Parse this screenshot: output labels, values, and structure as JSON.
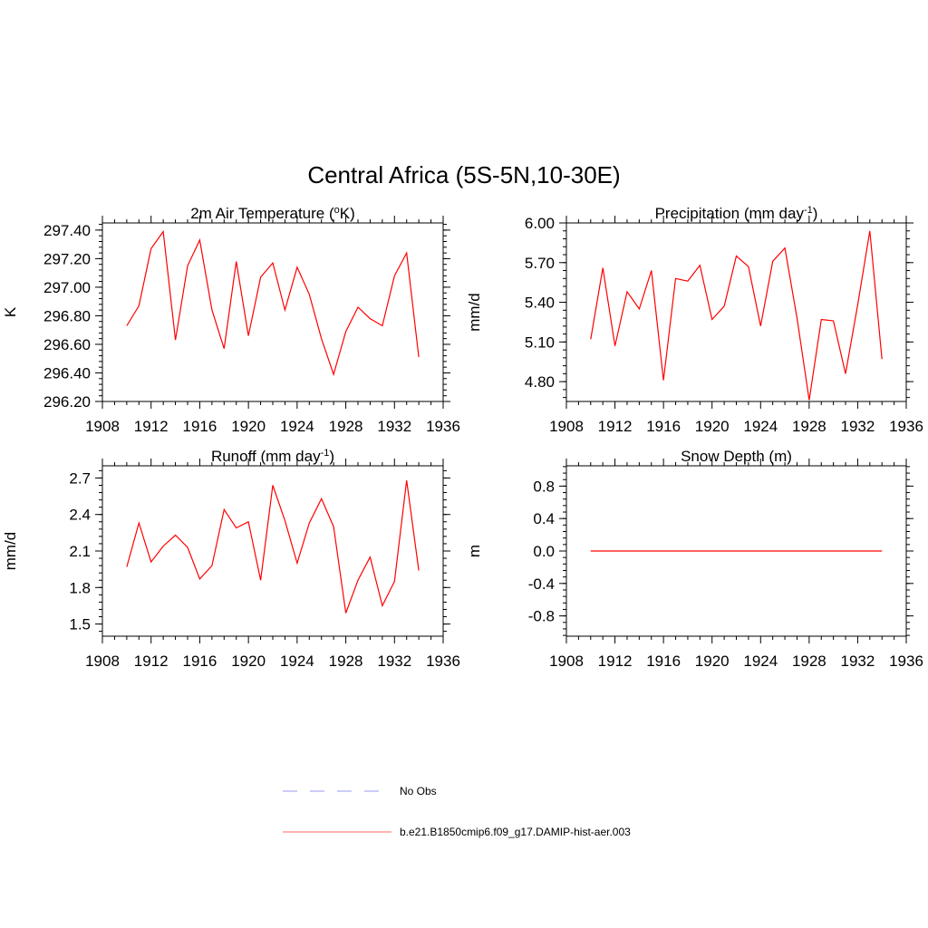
{
  "figure": {
    "title": "Central Africa (5S-5N,10-30E)"
  },
  "chart_data": [
    {
      "type": "line",
      "title": "2m Air Temperature (",
      "title_sup": "o",
      "title_tail": "K)",
      "ylabel": "K",
      "xlim": [
        1908,
        1936
      ],
      "ylim": [
        296.2,
        297.45
      ],
      "yticks": [
        "296.20",
        "296.40",
        "296.60",
        "296.80",
        "297.00",
        "297.20",
        "297.40"
      ],
      "xticks": [
        "1908",
        "1912",
        "1916",
        "1920",
        "1924",
        "1928",
        "1932",
        "1936"
      ],
      "series": [
        {
          "color": "#ff0000",
          "x": [
            1910,
            1911,
            1912,
            1913,
            1914,
            1915,
            1916,
            1917,
            1918,
            1919,
            1920,
            1921,
            1922,
            1923,
            1924,
            1925,
            1926,
            1927,
            1928,
            1929,
            1930,
            1931,
            1932,
            1933,
            1934
          ],
          "y": [
            296.73,
            296.87,
            297.27,
            297.39,
            296.63,
            297.15,
            297.33,
            296.84,
            296.57,
            297.18,
            296.66,
            297.07,
            297.17,
            296.84,
            297.14,
            296.95,
            296.64,
            296.39,
            296.69,
            296.86,
            296.78,
            296.73,
            297.08,
            297.24,
            296.51
          ]
        }
      ]
    },
    {
      "type": "line",
      "title": "Precipitation (mm day",
      "title_sup": "-1",
      "title_tail": ")",
      "ylabel": "mm/d",
      "xlim": [
        1908,
        1936
      ],
      "ylim": [
        4.65,
        6.0
      ],
      "yticks": [
        "4.80",
        "5.10",
        "5.40",
        "5.70",
        "6.00"
      ],
      "xticks": [
        "1908",
        "1912",
        "1916",
        "1920",
        "1924",
        "1928",
        "1932",
        "1936"
      ],
      "series": [
        {
          "color": "#ff0000",
          "x": [
            1910,
            1911,
            1912,
            1913,
            1914,
            1915,
            1916,
            1917,
            1918,
            1919,
            1920,
            1921,
            1922,
            1923,
            1924,
            1925,
            1926,
            1927,
            1928,
            1929,
            1930,
            1931,
            1932,
            1933,
            1934
          ],
          "y": [
            5.12,
            5.66,
            5.07,
            5.48,
            5.35,
            5.64,
            4.81,
            5.58,
            5.56,
            5.68,
            5.27,
            5.37,
            5.75,
            5.67,
            5.22,
            5.71,
            5.81,
            5.28,
            4.66,
            5.27,
            5.26,
            4.86,
            5.38,
            5.94,
            4.97
          ]
        }
      ]
    },
    {
      "type": "line",
      "title": "Runoff (mm day",
      "title_sup": "-1",
      "title_tail": ")",
      "ylabel": "mm/d",
      "xlim": [
        1908,
        1936
      ],
      "ylim": [
        1.4,
        2.8
      ],
      "yticks": [
        "1.5",
        "1.8",
        "2.1",
        "2.4",
        "2.7"
      ],
      "xticks": [
        "1908",
        "1912",
        "1916",
        "1920",
        "1924",
        "1928",
        "1932",
        "1936"
      ],
      "series": [
        {
          "color": "#ff0000",
          "x": [
            1910,
            1911,
            1912,
            1913,
            1914,
            1915,
            1916,
            1917,
            1918,
            1919,
            1920,
            1921,
            1922,
            1923,
            1924,
            1925,
            1926,
            1927,
            1928,
            1929,
            1930,
            1931,
            1932,
            1933,
            1934
          ],
          "y": [
            1.97,
            2.33,
            2.01,
            2.14,
            2.23,
            2.13,
            1.87,
            1.98,
            2.44,
            2.29,
            2.34,
            1.86,
            2.64,
            2.35,
            2.0,
            2.33,
            2.53,
            2.3,
            1.59,
            1.86,
            2.05,
            1.65,
            1.85,
            2.68,
            1.94
          ]
        }
      ]
    },
    {
      "type": "line",
      "title": "Snow Depth (m)",
      "title_sup": "",
      "title_tail": "",
      "ylabel": "m",
      "xlim": [
        1908,
        1936
      ],
      "ylim": [
        -1.05,
        1.05
      ],
      "yticks": [
        "-0.8",
        "-0.4",
        "0.0",
        "0.4",
        "0.8"
      ],
      "xticks": [
        "1908",
        "1912",
        "1916",
        "1920",
        "1924",
        "1928",
        "1932",
        "1936"
      ],
      "series": [
        {
          "color": "#ff0000",
          "x": [
            1910,
            1911,
            1912,
            1913,
            1914,
            1915,
            1916,
            1917,
            1918,
            1919,
            1920,
            1921,
            1922,
            1923,
            1924,
            1925,
            1926,
            1927,
            1928,
            1929,
            1930,
            1931,
            1932,
            1933,
            1934
          ],
          "y": [
            0,
            0,
            0,
            0,
            0,
            0,
            0,
            0,
            0,
            0,
            0,
            0,
            0,
            0,
            0,
            0,
            0,
            0,
            0,
            0,
            0,
            0,
            0,
            0,
            0
          ]
        }
      ]
    }
  ],
  "legend": {
    "items": [
      {
        "label": "No Obs",
        "color": "#9999ee",
        "style": "dashed"
      },
      {
        "label": "b.e21.B1850cmip6.f09_g17.DAMIP-hist-aer.003",
        "color": "#ff6666",
        "style": "solid"
      }
    ]
  }
}
